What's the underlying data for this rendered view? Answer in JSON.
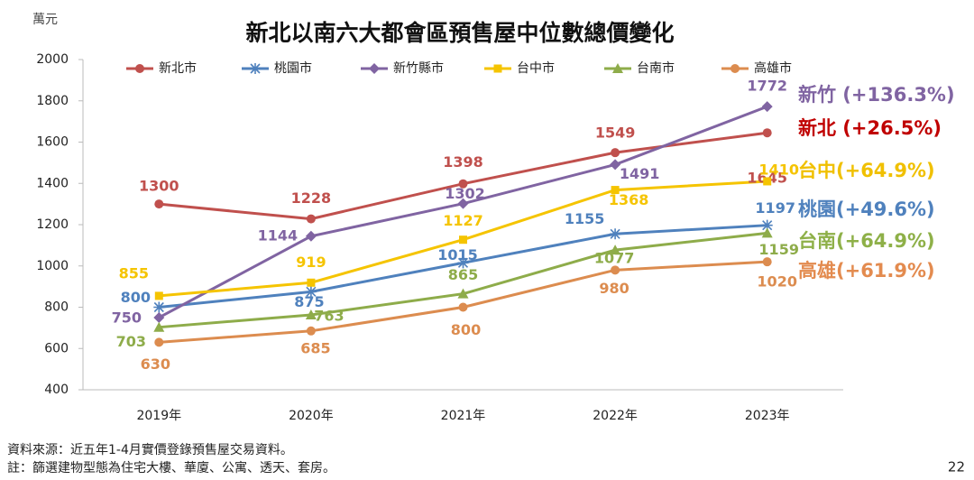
{
  "chart_data": {
    "type": "line",
    "title": "新北以南六大都會區預售屋中位數總價變化",
    "y_label": "萬元",
    "categories": [
      "2019年",
      "2020年",
      "2021年",
      "2022年",
      "2023年"
    ],
    "series": [
      {
        "name": "新北市",
        "color": "#c0504d",
        "marker": "circle",
        "values": [
          1300,
          1228,
          1398,
          1549,
          1645
        ]
      },
      {
        "name": "桃園市",
        "color": "#4f81bd",
        "marker": "star",
        "values": [
          800,
          875,
          1015,
          1155,
          1197
        ]
      },
      {
        "name": "新竹縣市",
        "color": "#8064a2",
        "marker": "diamond",
        "values": [
          750,
          1144,
          1302,
          1491,
          1772
        ]
      },
      {
        "name": "台中市",
        "color": "#f5c400",
        "marker": "square",
        "values": [
          855,
          919,
          1127,
          1368,
          1410
        ]
      },
      {
        "name": "台南市",
        "color": "#8eac4a",
        "marker": "triangle",
        "values": [
          703,
          763,
          865,
          1077,
          1159
        ]
      },
      {
        "name": "高雄市",
        "color": "#dc8c4f",
        "marker": "circle",
        "values": [
          630,
          685,
          800,
          980,
          1020
        ]
      }
    ],
    "ylim": [
      400,
      2000
    ],
    "yticks": [
      400,
      600,
      800,
      1000,
      1200,
      1400,
      1600,
      1800,
      2000
    ],
    "legend": "top",
    "annotations": [
      {
        "text": "新竹 (+136.3%)",
        "color": "#8064a2"
      },
      {
        "text": "新北 (+26.5%)",
        "color": "#c00000"
      },
      {
        "text": "台中(+64.9%)",
        "color": "#f0c000"
      },
      {
        "text": "桃園(+49.6%)",
        "color": "#4f81bd"
      },
      {
        "text": "台南(+64.9%)",
        "color": "#8eb048"
      },
      {
        "text": "高雄(+61.9%)",
        "color": "#e38b4f"
      }
    ]
  },
  "footnotes": [
    "資料來源：近五年1-4月實價登錄預售屋交易資料。",
    "註：篩選建物型態為住宅大樓、華廈、公寓、透天、套房。"
  ],
  "page_number": "22"
}
